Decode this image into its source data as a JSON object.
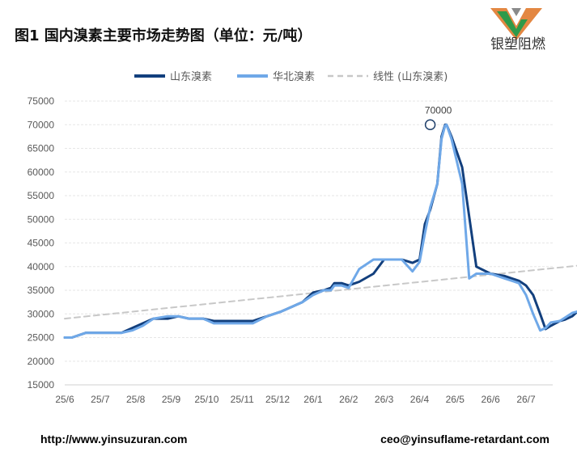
{
  "title": "图1 国内溴素主要市场走势图（单位：元/吨）",
  "logo": {
    "text": "银塑阻燃",
    "colors": [
      "#e07a2e",
      "#2e9a4a",
      "#8a8a8a"
    ]
  },
  "footer": {
    "website": "http://www.yinsuzuran.com",
    "email": "ceo@yinsuflame-retardant.com"
  },
  "chart_data": {
    "type": "line",
    "title": "",
    "xlabel": "",
    "ylabel": "",
    "ylim": [
      15000,
      75000
    ],
    "yticks": [
      15000,
      20000,
      25000,
      30000,
      35000,
      40000,
      45000,
      50000,
      55000,
      60000,
      65000,
      70000,
      75000
    ],
    "xticks": [
      "25/6",
      "25/7",
      "25/8",
      "25/9",
      "25/10",
      "25/11",
      "25/12",
      "26/1",
      "26/2",
      "26/3",
      "26/4",
      "26/5",
      "26/6",
      "26/7"
    ],
    "grid": true,
    "legend_position": "top",
    "annotation": {
      "text": "70000",
      "x": 10.3,
      "y": 70000
    },
    "series": [
      {
        "name": "山东溴素",
        "color": "#123f7d",
        "x": [
          0,
          0.2,
          0.6,
          1,
          1.3,
          1.6,
          1.9,
          2.2,
          2.5,
          2.9,
          3.2,
          3.5,
          3.9,
          4.2,
          4.6,
          5,
          5.3,
          5.7,
          6.1,
          6.4,
          6.7,
          7,
          7.3,
          7.5,
          7.6,
          7.8,
          8,
          8.3,
          8.7,
          9,
          9.2,
          9.5,
          9.8,
          10,
          10.15,
          10.3,
          10.5,
          10.62,
          10.72,
          10.76,
          10.9,
          11.2,
          11.6,
          12,
          12.4,
          12.8,
          13.0,
          13.2,
          13.4,
          13.55,
          13.7,
          13.95,
          14.1,
          14.3,
          14.45
        ],
        "y": [
          25000,
          25000,
          26000,
          26000,
          26000,
          26000,
          27000,
          28000,
          29000,
          29000,
          29500,
          29000,
          29000,
          28500,
          28500,
          28500,
          28500,
          29500,
          30500,
          31500,
          32500,
          34500,
          35000,
          35500,
          36500,
          36500,
          36000,
          36800,
          38500,
          41500,
          41500,
          41500,
          40800,
          41500,
          49000,
          52000,
          57500,
          67500,
          70000,
          70000,
          67500,
          61000,
          40000,
          38500,
          38000,
          37000,
          36000,
          34000,
          30000,
          26800,
          27500,
          28500,
          28800,
          29500,
          30500
        ]
      },
      {
        "name": "华北溴素",
        "color": "#6fa8e8",
        "x": [
          0,
          0.2,
          0.6,
          1,
          1.3,
          1.6,
          1.9,
          2.2,
          2.5,
          2.9,
          3.2,
          3.5,
          3.9,
          4.2,
          4.6,
          5,
          5.3,
          5.7,
          6.1,
          6.4,
          6.7,
          7,
          7.3,
          7.5,
          7.6,
          7.8,
          8,
          8.3,
          8.7,
          9,
          9.2,
          9.5,
          9.8,
          10,
          10.15,
          10.3,
          10.5,
          10.62,
          10.72,
          10.76,
          10.9,
          11.2,
          11.4,
          11.6,
          12,
          12.4,
          12.8,
          13.0,
          13.2,
          13.4,
          13.55,
          13.7,
          13.95,
          14.1,
          14.3,
          14.45
        ],
        "y": [
          25000,
          25000,
          26000,
          26000,
          26000,
          26000,
          26500,
          27500,
          29000,
          29500,
          29500,
          29000,
          29000,
          28000,
          28000,
          28000,
          28000,
          29500,
          30500,
          31500,
          32500,
          34000,
          35000,
          35000,
          36000,
          36000,
          35500,
          39500,
          41500,
          41500,
          41500,
          41500,
          39000,
          41000,
          47000,
          52500,
          57500,
          67000,
          69800,
          70000,
          67000,
          57500,
          37500,
          38500,
          38500,
          37500,
          36500,
          34000,
          30000,
          26500,
          27000,
          28200,
          28500,
          29200,
          30200,
          30500
        ]
      },
      {
        "name": "线性 (山东溴素)",
        "color": "#c8c8c8",
        "dashed": true,
        "x": [
          0,
          14.45
        ],
        "y": [
          29000,
          40200
        ]
      }
    ]
  }
}
